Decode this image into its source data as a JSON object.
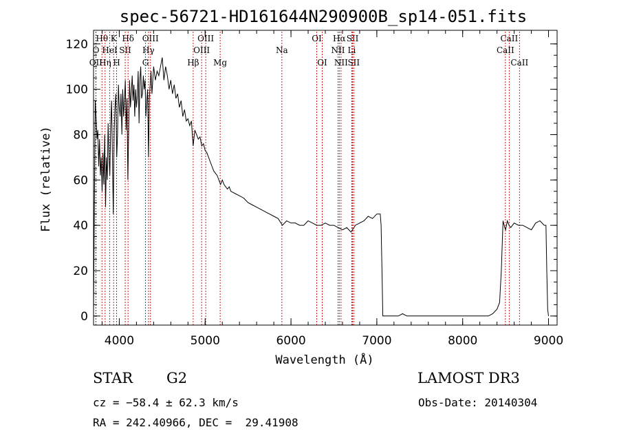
{
  "chart_data": {
    "type": "line",
    "title": "spec-56721-HD161644N290900B_sp14-051.fits",
    "xlabel": "Wavelength (Å)",
    "ylabel": "Flux (relative)",
    "xlim": [
      3700,
      9100
    ],
    "ylim": [
      -4,
      126
    ],
    "xticks": [
      4000,
      5000,
      6000,
      7000,
      8000,
      9000
    ],
    "yticks": [
      0,
      20,
      40,
      60,
      80,
      100,
      120
    ],
    "grid": false,
    "line_color": "#000000",
    "marker_color": "#cc0000",
    "series": [
      {
        "points": [
          [
            3700,
            0
          ],
          [
            3710,
            50
          ],
          [
            3720,
            95
          ],
          [
            3730,
            88
          ],
          [
            3740,
            78
          ],
          [
            3750,
            82
          ],
          [
            3760,
            66
          ],
          [
            3770,
            78
          ],
          [
            3780,
            62
          ],
          [
            3790,
            70
          ],
          [
            3800,
            55
          ],
          [
            3810,
            72
          ],
          [
            3820,
            58
          ],
          [
            3830,
            80
          ],
          [
            3840,
            48
          ],
          [
            3850,
            70
          ],
          [
            3860,
            60
          ],
          [
            3870,
            85
          ],
          [
            3880,
            70
          ],
          [
            3890,
            62
          ],
          [
            3900,
            84
          ],
          [
            3910,
            95
          ],
          [
            3920,
            70
          ],
          [
            3930,
            45
          ],
          [
            3940,
            82
          ],
          [
            3950,
            92
          ],
          [
            3960,
            98
          ],
          [
            3970,
            70
          ],
          [
            3980,
            80
          ],
          [
            3990,
            102
          ],
          [
            4000,
            92
          ],
          [
            4010,
            88
          ],
          [
            4020,
            98
          ],
          [
            4030,
            80
          ],
          [
            4040,
            100
          ],
          [
            4050,
            88
          ],
          [
            4060,
            95
          ],
          [
            4070,
            104
          ],
          [
            4080,
            82
          ],
          [
            4090,
            96
          ],
          [
            4100,
            60
          ],
          [
            4110,
            84
          ],
          [
            4120,
            104
          ],
          [
            4130,
            92
          ],
          [
            4140,
            98
          ],
          [
            4150,
            106
          ],
          [
            4160,
            95
          ],
          [
            4170,
            102
          ],
          [
            4180,
            88
          ],
          [
            4190,
            100
          ],
          [
            4200,
            92
          ],
          [
            4210,
            97
          ],
          [
            4220,
            108
          ],
          [
            4230,
            85
          ],
          [
            4240,
            104
          ],
          [
            4250,
            110
          ],
          [
            4260,
            96
          ],
          [
            4270,
            98
          ],
          [
            4280,
            106
          ],
          [
            4290,
            100
          ],
          [
            4300,
            104
          ],
          [
            4310,
            88
          ],
          [
            4320,
            95
          ],
          [
            4330,
            100
          ],
          [
            4340,
            70
          ],
          [
            4350,
            96
          ],
          [
            4360,
            102
          ],
          [
            4370,
            108
          ],
          [
            4380,
            98
          ],
          [
            4400,
            110
          ],
          [
            4420,
            104
          ],
          [
            4440,
            108
          ],
          [
            4460,
            106
          ],
          [
            4480,
            110
          ],
          [
            4500,
            114
          ],
          [
            4520,
            104
          ],
          [
            4540,
            110
          ],
          [
            4560,
            106
          ],
          [
            4580,
            100
          ],
          [
            4600,
            104
          ],
          [
            4620,
            98
          ],
          [
            4640,
            102
          ],
          [
            4660,
            96
          ],
          [
            4680,
            98
          ],
          [
            4700,
            92
          ],
          [
            4720,
            95
          ],
          [
            4740,
            88
          ],
          [
            4760,
            91
          ],
          [
            4780,
            86
          ],
          [
            4800,
            87
          ],
          [
            4820,
            84
          ],
          [
            4840,
            86
          ],
          [
            4860,
            75
          ],
          [
            4880,
            82
          ],
          [
            4900,
            80
          ],
          [
            4920,
            78
          ],
          [
            4940,
            79
          ],
          [
            4960,
            75
          ],
          [
            4980,
            76
          ],
          [
            5000,
            73
          ],
          [
            5020,
            72
          ],
          [
            5040,
            70
          ],
          [
            5060,
            68
          ],
          [
            5080,
            66
          ],
          [
            5100,
            64
          ],
          [
            5120,
            63
          ],
          [
            5140,
            62
          ],
          [
            5160,
            60
          ],
          [
            5180,
            58
          ],
          [
            5200,
            60
          ],
          [
            5220,
            58
          ],
          [
            5240,
            57
          ],
          [
            5260,
            56
          ],
          [
            5280,
            57
          ],
          [
            5300,
            55
          ],
          [
            5350,
            54
          ],
          [
            5400,
            53
          ],
          [
            5450,
            52
          ],
          [
            5500,
            50
          ],
          [
            5550,
            49
          ],
          [
            5600,
            48
          ],
          [
            5650,
            47
          ],
          [
            5700,
            46
          ],
          [
            5750,
            45
          ],
          [
            5800,
            44
          ],
          [
            5850,
            43
          ],
          [
            5900,
            40
          ],
          [
            5950,
            42
          ],
          [
            6000,
            41
          ],
          [
            6050,
            41
          ],
          [
            6100,
            40
          ],
          [
            6150,
            40
          ],
          [
            6200,
            42
          ],
          [
            6250,
            41
          ],
          [
            6300,
            40
          ],
          [
            6350,
            40
          ],
          [
            6400,
            41
          ],
          [
            6450,
            40
          ],
          [
            6500,
            40
          ],
          [
            6550,
            39
          ],
          [
            6600,
            38
          ],
          [
            6650,
            39
          ],
          [
            6700,
            37
          ],
          [
            6750,
            40
          ],
          [
            6800,
            41
          ],
          [
            6850,
            42
          ],
          [
            6900,
            44
          ],
          [
            6950,
            43
          ],
          [
            7000,
            45
          ],
          [
            7040,
            45
          ],
          [
            7050,
            40
          ],
          [
            7060,
            20
          ],
          [
            7070,
            0
          ],
          [
            7100,
            0
          ],
          [
            7150,
            0
          ],
          [
            7200,
            0
          ],
          [
            7250,
            0
          ],
          [
            7300,
            1
          ],
          [
            7350,
            0
          ],
          [
            7400,
            0
          ],
          [
            7450,
            0
          ],
          [
            7500,
            0
          ],
          [
            7550,
            0
          ],
          [
            7600,
            0
          ],
          [
            7650,
            0
          ],
          [
            7700,
            0
          ],
          [
            7750,
            0
          ],
          [
            7800,
            0
          ],
          [
            7850,
            0
          ],
          [
            7900,
            0
          ],
          [
            7950,
            0
          ],
          [
            8000,
            0
          ],
          [
            8050,
            0
          ],
          [
            8100,
            0
          ],
          [
            8150,
            0
          ],
          [
            8200,
            0
          ],
          [
            8250,
            0
          ],
          [
            8300,
            0
          ],
          [
            8350,
            1
          ],
          [
            8400,
            3
          ],
          [
            8430,
            6
          ],
          [
            8450,
            20
          ],
          [
            8470,
            42
          ],
          [
            8490,
            39
          ],
          [
            8500,
            38
          ],
          [
            8520,
            42
          ],
          [
            8540,
            40
          ],
          [
            8560,
            39
          ],
          [
            8580,
            40
          ],
          [
            8600,
            41
          ],
          [
            8650,
            40
          ],
          [
            8700,
            40
          ],
          [
            8750,
            39
          ],
          [
            8800,
            38
          ],
          [
            8850,
            41
          ],
          [
            8900,
            42
          ],
          [
            8950,
            40
          ],
          [
            8970,
            40
          ],
          [
            8980,
            20
          ],
          [
            8990,
            3
          ],
          [
            9000,
            0
          ]
        ]
      }
    ],
    "lines": [
      {
        "label": "Hθ",
        "x": 3798,
        "row": 1
      },
      {
        "label": "O",
        "x": 3728,
        "row": 2
      },
      {
        "label": "OII",
        "x": 3727,
        "row": 3
      },
      {
        "label": "K",
        "x": 3934,
        "row": 1
      },
      {
        "label": "HeI",
        "x": 3889,
        "row": 2
      },
      {
        "label": "Hη",
        "x": 3835,
        "row": 3
      },
      {
        "label": "SII",
        "x": 4069,
        "row": 2
      },
      {
        "label": "H",
        "x": 3969,
        "row": 3
      },
      {
        "label": "Hδ",
        "x": 4102,
        "row": 1
      },
      {
        "label": "OIII",
        "x": 4363,
        "row": 1
      },
      {
        "label": "Hγ",
        "x": 4340,
        "row": 2
      },
      {
        "label": "G",
        "x": 4305,
        "row": 3
      },
      {
        "label": "OIII",
        "x": 5007,
        "row": 1
      },
      {
        "label": "OIII",
        "x": 4959,
        "row": 2
      },
      {
        "label": "Hβ",
        "x": 4861,
        "row": 3
      },
      {
        "label": "Mg",
        "x": 5175,
        "row": 3
      },
      {
        "label": "Na",
        "x": 5894,
        "row": 2
      },
      {
        "label": "OI",
        "x": 6300,
        "row": 1
      },
      {
        "label": "OI",
        "x": 6364,
        "row": 3
      },
      {
        "label": "Hα",
        "x": 6563,
        "row": 1
      },
      {
        "label": "SII",
        "x": 6717,
        "row": 1
      },
      {
        "label": "NII",
        "x": 6548,
        "row": 2
      },
      {
        "label": "Li",
        "x": 6708,
        "row": 2
      },
      {
        "label": "NII",
        "x": 6583,
        "row": 3
      },
      {
        "label": "SII",
        "x": 6731,
        "row": 3
      },
      {
        "label": "CaII",
        "x": 8542,
        "row": 1
      },
      {
        "label": "CaII",
        "x": 8498,
        "row": 2
      },
      {
        "label": "CaII",
        "x": 8662,
        "row": 3
      }
    ]
  },
  "info": {
    "class": "STAR",
    "subclass": "G2",
    "survey": "LAMOST DR3",
    "cz": "cz = −58.4 ± 62.3 km/s",
    "obs_date": "Obs-Date: 20140304",
    "coords": "RA = 242.40966, DEC =  29.41908"
  }
}
